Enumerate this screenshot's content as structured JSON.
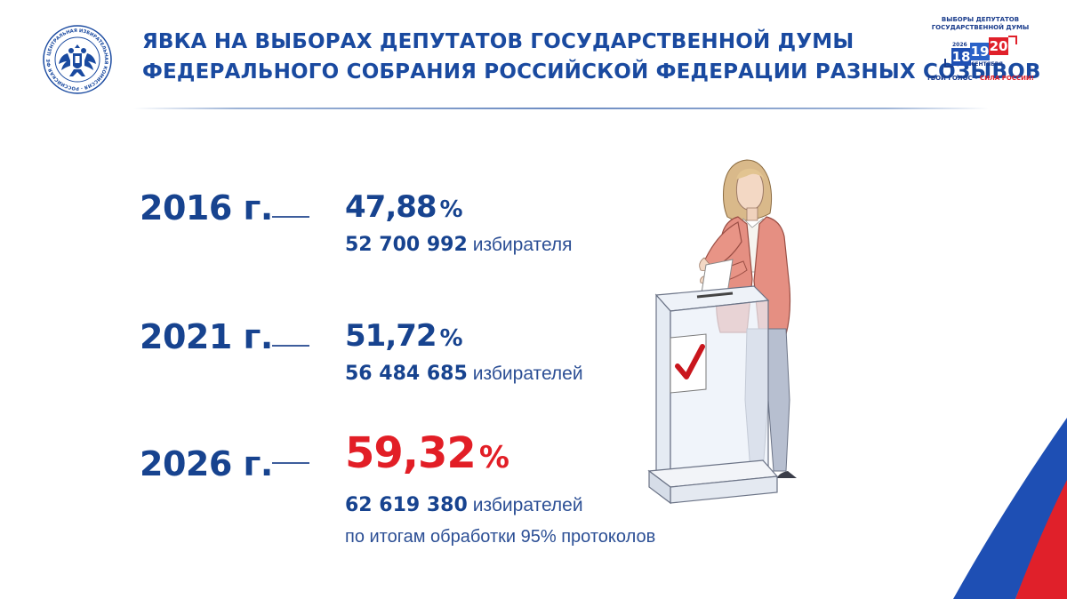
{
  "header": {
    "title_line1": "ЯВКА НА ВЫБОРАХ ДЕПУТАТОВ ГОСУДАРСТВЕННОЙ ДУМЫ",
    "title_line2": "ФЕДЕРАЛЬНОГО СОБРАНИЯ РОССИЙСКОЙ ФЕДЕРАЦИИ РАЗНЫХ СОЗЫВОВ",
    "emblem_icon": "double-headed-eagle-emblem",
    "emblem_ring_text": "ЦЕНТРАЛЬНАЯ ИЗБИРАТЕЛЬНАЯ КОМИССИЯ РОССИЙСКАЯ ФЕДЕРАЦИЯ"
  },
  "badge": {
    "line1": "ВЫБОРЫ ДЕПУТАТОВ",
    "line2": "ГОСУДАРСТВЕННОЙ ДУМЫ",
    "year": "2026",
    "day1": "18",
    "day2": "19",
    "day3": "20",
    "month": "СЕНТЯБРЯ",
    "slogan_part1": "ТВОЙ ГОЛОС – ",
    "slogan_part2": "СИЛА РОССИИ!"
  },
  "rows": [
    {
      "year": "2016 г.",
      "percent": "47,88",
      "percent_sign": "%",
      "voters": "52 700 992",
      "voters_unit": "избирателя"
    },
    {
      "year": "2021 г.",
      "percent": "51,72",
      "percent_sign": "%",
      "voters": "56 484 685",
      "voters_unit": "избирателей"
    },
    {
      "year": "2026 г.",
      "percent": "59,32",
      "percent_sign": "%",
      "voters": "62 619 380",
      "voters_unit": "избирателей"
    }
  ],
  "note": "по итогам обработки 95% протоколов",
  "colors": {
    "primary_blue": "#17438f",
    "highlight_red": "#e21e26",
    "flag_blue": "#1e4fb4",
    "flag_red": "#e0202a"
  },
  "illustration": {
    "icon": "woman-voting-at-ballot-box-illustration",
    "ballot_mark_icon": "red-checkmark-icon"
  }
}
